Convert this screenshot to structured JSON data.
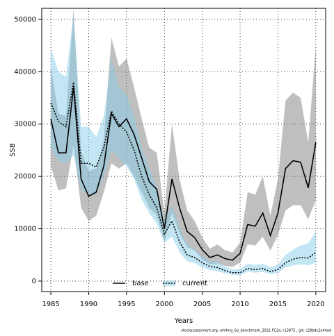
{
  "chart_data": {
    "type": "line",
    "xlabel": "Years",
    "ylabel": "SSB",
    "footer": "stockassessment.org, whiting_6a_benchmark_2021 FC2a, r13875 , git: c28bdc2a44ad",
    "x": [
      1985,
      1986,
      1987,
      1988,
      1989,
      1990,
      1991,
      1992,
      1993,
      1994,
      1995,
      1996,
      1997,
      1998,
      1999,
      2000,
      2001,
      2002,
      2003,
      2004,
      2005,
      2006,
      2007,
      2008,
      2009,
      2010,
      2011,
      2012,
      2013,
      2014,
      2015,
      2016,
      2017,
      2018,
      2019,
      2020
    ],
    "series": [
      {
        "name": "base",
        "color": "#000000",
        "band_color": "#808080",
        "dash": "solid",
        "values": [
          31000,
          24500,
          24500,
          37000,
          19500,
          16200,
          17000,
          22000,
          32000,
          29500,
          31000,
          28000,
          23500,
          19000,
          17500,
          10000,
          19500,
          14000,
          9500,
          8300,
          6000,
          4500,
          5000,
          4300,
          4000,
          5300,
          10800,
          10500,
          13000,
          8700,
          13000,
          21500,
          23000,
          22700,
          17800,
          26500
        ],
        "low": [
          22000,
          17300,
          17700,
          26000,
          14000,
          11500,
          12500,
          17000,
          22500,
          21500,
          22500,
          20000,
          17000,
          14000,
          12500,
          7500,
          13000,
          9000,
          6500,
          5800,
          4200,
          3200,
          3400,
          2900,
          2700,
          3500,
          7000,
          6800,
          8500,
          5800,
          8800,
          13500,
          14500,
          14500,
          11800,
          15500
        ],
        "high": [
          41000,
          32000,
          31500,
          52000,
          25000,
          21000,
          21500,
          27000,
          46500,
          41000,
          42500,
          37000,
          31000,
          25500,
          24500,
          13000,
          30000,
          19500,
          13500,
          11500,
          8300,
          6200,
          7000,
          5900,
          5500,
          7300,
          17000,
          16500,
          20000,
          12500,
          19500,
          34500,
          36000,
          35000,
          26500,
          45000
        ]
      },
      {
        "name": "current",
        "color": "#000000",
        "band_color": "#87ceeb",
        "dash": "dotted",
        "values": [
          34000,
          30500,
          29500,
          38000,
          22500,
          22500,
          21800,
          25500,
          32500,
          30000,
          28500,
          25000,
          20000,
          16500,
          14000,
          9000,
          11500,
          7500,
          5000,
          4500,
          3500,
          2800,
          2600,
          2000,
          1600,
          1600,
          2400,
          2200,
          2400,
          1800,
          2200,
          3500,
          4200,
          4500,
          4400,
          5500
        ],
        "low": [
          25500,
          23000,
          22500,
          24000,
          17500,
          16500,
          16500,
          20000,
          25000,
          23500,
          22000,
          19500,
          15500,
          13000,
          11000,
          7300,
          8500,
          5500,
          3800,
          3400,
          2600,
          2100,
          1900,
          1500,
          1200,
          1100,
          1800,
          1600,
          1800,
          1300,
          1600,
          2600,
          3000,
          3200,
          3000,
          3500
        ],
        "high": [
          44500,
          40000,
          39000,
          51000,
          29500,
          29500,
          27500,
          31500,
          42500,
          37000,
          35500,
          31500,
          25500,
          21500,
          18000,
          11500,
          14500,
          10000,
          7000,
          6000,
          4800,
          3800,
          3600,
          2800,
          2200,
          2300,
          3300,
          3100,
          3300,
          2600,
          3200,
          5000,
          6000,
          6800,
          7200,
          9500
        ]
      }
    ],
    "xlim": [
      1983.8,
      2021.3
    ],
    "ylim": [
      -2000,
      52100
    ],
    "xticks": [
      1985,
      1990,
      1995,
      2000,
      2005,
      2010,
      2015,
      2020
    ],
    "yticks": [
      0,
      10000,
      20000,
      30000,
      40000,
      50000
    ],
    "grid": true,
    "legend": "bottom"
  }
}
